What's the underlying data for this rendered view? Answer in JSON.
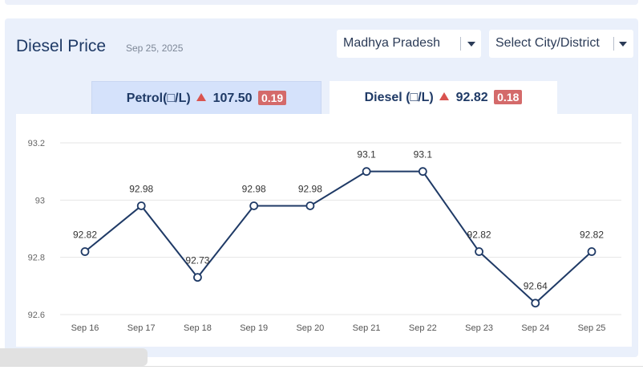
{
  "header": {
    "title": "Diesel Price",
    "date": "Sep 25, 2025"
  },
  "filters": {
    "state": "Madhya Pradesh",
    "city": "Select City/District"
  },
  "tabs": {
    "petrol": {
      "label": "Petrol(□/L)",
      "price": "107.50",
      "change": "0.19"
    },
    "diesel": {
      "label": "Diesel (□/L)",
      "price": "92.82",
      "change": "0.18"
    }
  },
  "colors": {
    "line": "#1f3a66",
    "increase": "#d9534f",
    "badge": "#d46a6a"
  },
  "chart_data": {
    "type": "line",
    "categories": [
      "Sep 16",
      "Sep 17",
      "Sep 18",
      "Sep 19",
      "Sep 20",
      "Sep 21",
      "Sep 22",
      "Sep 23",
      "Sep 24",
      "Sep 25"
    ],
    "values": [
      92.82,
      92.98,
      92.73,
      92.98,
      92.98,
      93.1,
      93.1,
      92.82,
      92.64,
      92.82
    ],
    "data_labels": [
      "92.82",
      "92.98",
      "92.73",
      "92.98",
      "92.98",
      "93.1",
      "93.1",
      "92.82",
      "92.64",
      "92.82"
    ],
    "y_ticks": [
      92.6,
      92.8,
      93,
      93.2
    ],
    "y_tick_labels": [
      "92.6",
      "92.8",
      "93",
      "93.2"
    ],
    "ylim": [
      92.6,
      93.2
    ],
    "grid": true,
    "legend": false
  }
}
